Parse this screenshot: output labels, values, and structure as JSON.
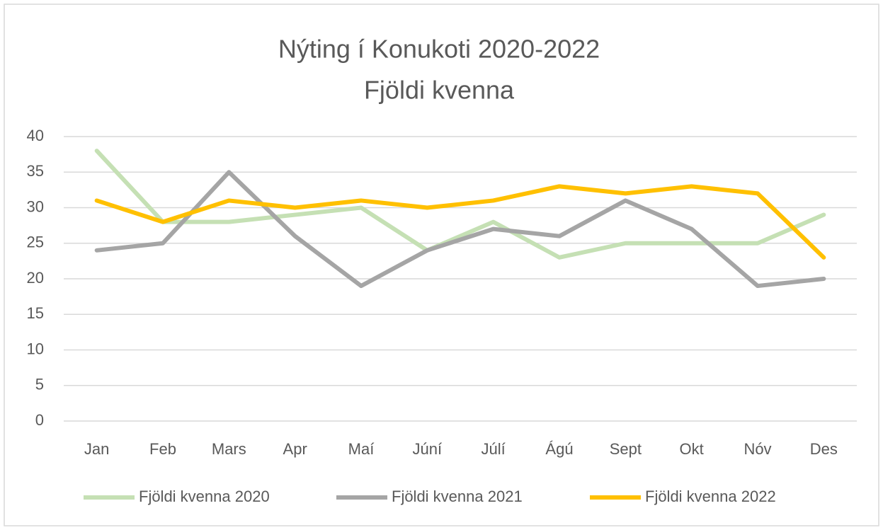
{
  "chart_data": {
    "type": "line",
    "title": "Nýting í Konukoti 2020-2022",
    "subtitle": "Fjöldi kvenna",
    "categories": [
      "Jan",
      "Feb",
      "Mars",
      "Apr",
      "Maí",
      "Júní",
      "Júlí",
      "Ágú",
      "Sept",
      "Okt",
      "Nóv",
      "Des"
    ],
    "series": [
      {
        "name": "Fjöldi kvenna 2020",
        "color": "#c5e0b4",
        "values": [
          38,
          28,
          28,
          29,
          30,
          24,
          28,
          23,
          25,
          25,
          25,
          29
        ]
      },
      {
        "name": "Fjöldi kvenna 2021",
        "color": "#a5a5a5",
        "values": [
          24,
          25,
          35,
          26,
          19,
          24,
          27,
          26,
          31,
          27,
          19,
          20
        ]
      },
      {
        "name": "Fjöldi kvenna 2022",
        "color": "#ffc000",
        "values": [
          31,
          28,
          31,
          30,
          31,
          30,
          31,
          33,
          32,
          33,
          32,
          23
        ]
      }
    ],
    "ylim": [
      0,
      40
    ],
    "yticks": [
      0,
      5,
      10,
      15,
      20,
      25,
      30,
      35,
      40
    ],
    "grid": true,
    "legend": "bottom"
  }
}
